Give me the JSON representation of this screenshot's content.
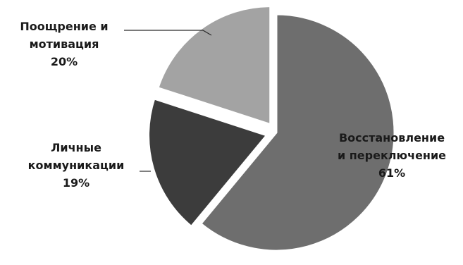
{
  "chart_data": {
    "type": "pie",
    "title": "",
    "slices": [
      {
        "label_lines": [
          "Восстановление",
          "и переключение"
        ],
        "value": 61,
        "value_text": "61%",
        "color": "#6e6e6e",
        "exploded": false
      },
      {
        "label_lines": [
          "Личные",
          "коммуникации"
        ],
        "value": 19,
        "value_text": "19%",
        "color": "#3c3c3c",
        "exploded": true
      },
      {
        "label_lines": [
          "Поощрение и",
          "мотивация"
        ],
        "value": 20,
        "value_text": "20%",
        "color": "#a3a3a3",
        "exploded": true
      }
    ],
    "legend": "none"
  }
}
